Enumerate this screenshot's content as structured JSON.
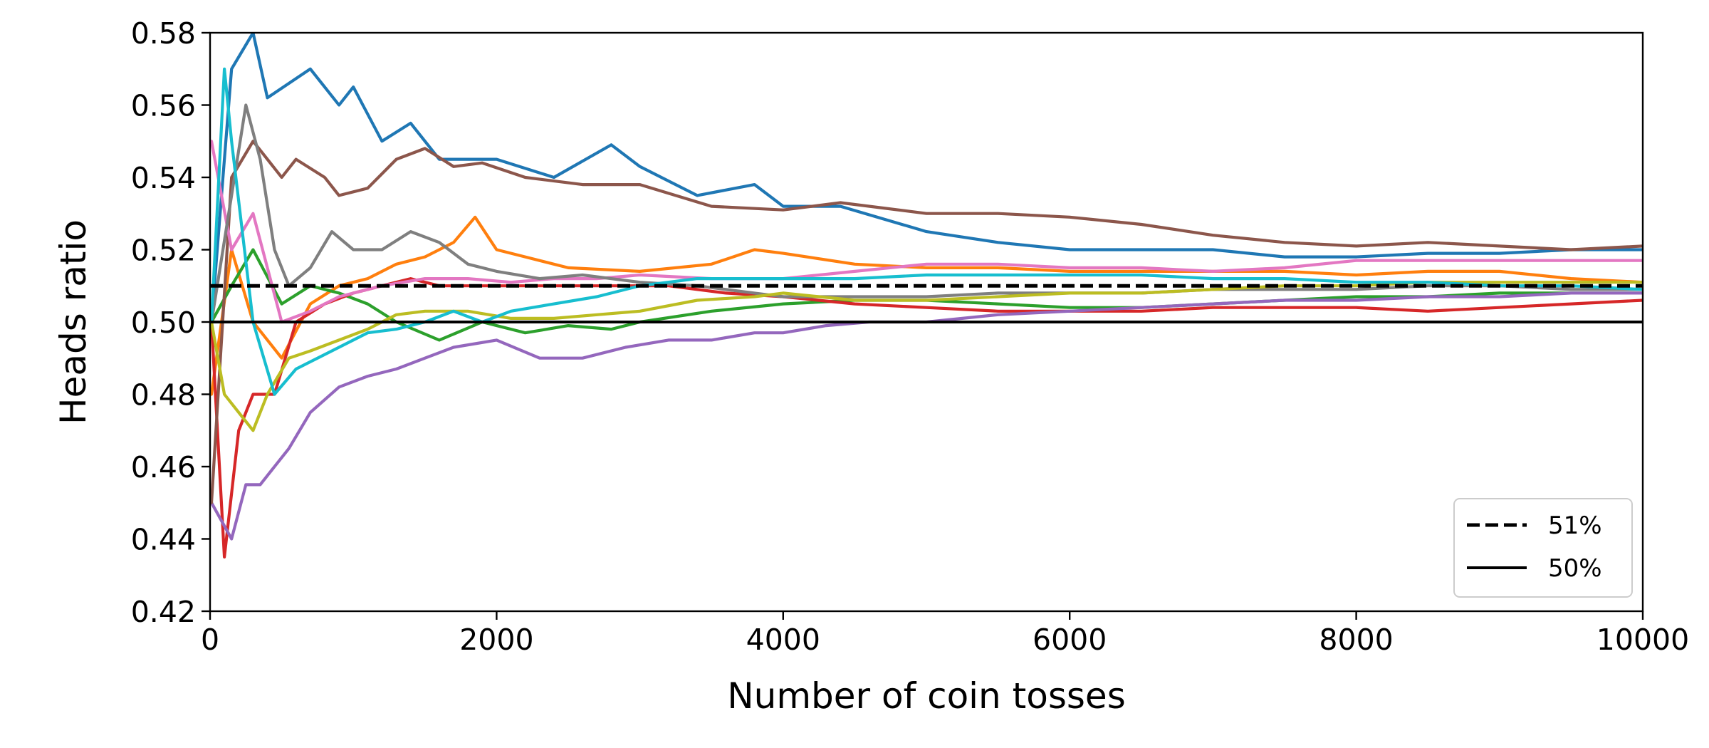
{
  "chart_data": {
    "type": "line",
    "title": "",
    "xlabel": "Number of coin tosses",
    "ylabel": "Heads ratio",
    "xlim": [
      0,
      10000
    ],
    "ylim": [
      0.42,
      0.58
    ],
    "x_ticks": [
      0,
      2000,
      4000,
      6000,
      8000,
      10000
    ],
    "x_tick_labels": [
      "0",
      "2000",
      "4000",
      "6000",
      "8000",
      "10000"
    ],
    "y_ticks": [
      0.42,
      0.44,
      0.46,
      0.48,
      0.5,
      0.52,
      0.54,
      0.56,
      0.58
    ],
    "y_tick_labels": [
      "0.42",
      "0.44",
      "0.46",
      "0.48",
      "0.50",
      "0.52",
      "0.54",
      "0.56",
      "0.58"
    ],
    "grid": false,
    "legend": {
      "placement": "lower-right",
      "entries": [
        {
          "label": "51%",
          "style": "dashed",
          "color": "#000000"
        },
        {
          "label": "50%",
          "style": "solid",
          "color": "#000000"
        }
      ]
    },
    "reference_lines": [
      {
        "label": "51%",
        "y": 0.51,
        "style": "dashed",
        "color": "#000000"
      },
      {
        "label": "50%",
        "y": 0.5,
        "style": "solid",
        "color": "#000000"
      }
    ],
    "series": [
      {
        "color": "#1f77b4",
        "x": [
          10,
          150,
          300,
          400,
          700,
          900,
          1000,
          1200,
          1400,
          1600,
          1800,
          2000,
          2400,
          2800,
          3000,
          3400,
          3800,
          4000,
          4400,
          5000,
          5500,
          6000,
          6500,
          7000,
          7500,
          8000,
          8500,
          9000,
          9500,
          10000
        ],
        "y": [
          0.5,
          0.57,
          0.58,
          0.562,
          0.57,
          0.56,
          0.565,
          0.55,
          0.555,
          0.545,
          0.545,
          0.545,
          0.54,
          0.549,
          0.543,
          0.535,
          0.538,
          0.532,
          0.532,
          0.525,
          0.522,
          0.52,
          0.52,
          0.52,
          0.518,
          0.518,
          0.519,
          0.519,
          0.52,
          0.52
        ]
      },
      {
        "color": "#ff7f0e",
        "x": [
          10,
          150,
          300,
          500,
          700,
          900,
          1100,
          1300,
          1500,
          1700,
          1850,
          2000,
          2200,
          2500,
          3000,
          3500,
          3800,
          4000,
          4500,
          5000,
          5500,
          6000,
          6500,
          7000,
          7500,
          8000,
          8500,
          9000,
          9500,
          10000
        ],
        "y": [
          0.48,
          0.52,
          0.5,
          0.49,
          0.505,
          0.51,
          0.512,
          0.516,
          0.518,
          0.522,
          0.529,
          0.52,
          0.518,
          0.515,
          0.514,
          0.516,
          0.52,
          0.519,
          0.516,
          0.515,
          0.515,
          0.514,
          0.514,
          0.514,
          0.514,
          0.513,
          0.514,
          0.514,
          0.512,
          0.511
        ]
      },
      {
        "color": "#2ca02c",
        "x": [
          10,
          150,
          300,
          500,
          700,
          900,
          1100,
          1300,
          1600,
          1900,
          2200,
          2500,
          2800,
          3000,
          3500,
          4000,
          4500,
          5000,
          5500,
          6000,
          6500,
          7000,
          7500,
          8000,
          8500,
          9000,
          9500,
          10000
        ],
        "y": [
          0.5,
          0.51,
          0.52,
          0.505,
          0.51,
          0.508,
          0.505,
          0.5,
          0.495,
          0.5,
          0.497,
          0.499,
          0.498,
          0.5,
          0.503,
          0.505,
          0.506,
          0.506,
          0.505,
          0.504,
          0.504,
          0.505,
          0.506,
          0.507,
          0.507,
          0.508,
          0.508,
          0.508
        ]
      },
      {
        "color": "#d62728",
        "x": [
          10,
          100,
          200,
          300,
          450,
          600,
          800,
          1000,
          1200,
          1400,
          1600,
          2000,
          2400,
          2800,
          3200,
          3600,
          4000,
          4500,
          5000,
          5500,
          6000,
          6500,
          7000,
          7500,
          8000,
          8500,
          9000,
          9500,
          10000
        ],
        "y": [
          0.5,
          0.435,
          0.47,
          0.48,
          0.48,
          0.5,
          0.505,
          0.508,
          0.51,
          0.512,
          0.51,
          0.51,
          0.51,
          0.51,
          0.51,
          0.508,
          0.507,
          0.505,
          0.504,
          0.503,
          0.503,
          0.503,
          0.504,
          0.504,
          0.504,
          0.503,
          0.504,
          0.505,
          0.506
        ]
      },
      {
        "color": "#9467bd",
        "x": [
          10,
          150,
          250,
          350,
          450,
          550,
          700,
          900,
          1100,
          1300,
          1500,
          1700,
          2000,
          2300,
          2600,
          2900,
          3200,
          3500,
          3800,
          4000,
          4300,
          4600,
          5000,
          5500,
          6000,
          6500,
          7000,
          7500,
          8000,
          8500,
          9000,
          9500,
          10000
        ],
        "y": [
          0.45,
          0.44,
          0.455,
          0.455,
          0.46,
          0.465,
          0.475,
          0.482,
          0.485,
          0.487,
          0.49,
          0.493,
          0.495,
          0.49,
          0.49,
          0.493,
          0.495,
          0.495,
          0.497,
          0.497,
          0.499,
          0.5,
          0.5,
          0.502,
          0.503,
          0.504,
          0.505,
          0.506,
          0.506,
          0.507,
          0.507,
          0.508,
          0.508
        ]
      },
      {
        "color": "#8c564b",
        "x": [
          10,
          150,
          300,
          400,
          500,
          600,
          800,
          900,
          1100,
          1300,
          1500,
          1700,
          1900,
          2200,
          2600,
          3000,
          3500,
          4000,
          4400,
          5000,
          5500,
          6000,
          6500,
          7000,
          7500,
          8000,
          8500,
          9000,
          9500,
          10000
        ],
        "y": [
          0.45,
          0.54,
          0.55,
          0.545,
          0.54,
          0.545,
          0.54,
          0.535,
          0.537,
          0.545,
          0.548,
          0.543,
          0.544,
          0.54,
          0.538,
          0.538,
          0.532,
          0.531,
          0.533,
          0.53,
          0.53,
          0.529,
          0.527,
          0.524,
          0.522,
          0.521,
          0.522,
          0.521,
          0.52,
          0.521
        ]
      },
      {
        "color": "#e377c2",
        "x": [
          10,
          150,
          300,
          500,
          700,
          900,
          1200,
          1500,
          1800,
          2100,
          2400,
          2700,
          3000,
          3500,
          4000,
          4500,
          5000,
          5500,
          6000,
          6500,
          7000,
          7500,
          8000,
          8500,
          9000,
          9500,
          10000
        ],
        "y": [
          0.55,
          0.52,
          0.53,
          0.5,
          0.503,
          0.507,
          0.51,
          0.512,
          0.512,
          0.511,
          0.512,
          0.512,
          0.513,
          0.512,
          0.512,
          0.514,
          0.516,
          0.516,
          0.515,
          0.515,
          0.514,
          0.515,
          0.517,
          0.517,
          0.517,
          0.517,
          0.517
        ]
      },
      {
        "color": "#7f7f7f",
        "x": [
          10,
          150,
          250,
          350,
          450,
          550,
          700,
          850,
          1000,
          1200,
          1400,
          1600,
          1800,
          2000,
          2300,
          2600,
          3000,
          3400,
          3800,
          4000,
          4500,
          5000,
          5500,
          6000,
          6500,
          7000,
          7500,
          8000,
          8500,
          9000,
          9500,
          10000
        ],
        "y": [
          0.5,
          0.535,
          0.56,
          0.545,
          0.52,
          0.51,
          0.515,
          0.525,
          0.52,
          0.52,
          0.525,
          0.522,
          0.516,
          0.514,
          0.512,
          0.513,
          0.511,
          0.51,
          0.508,
          0.507,
          0.507,
          0.507,
          0.508,
          0.508,
          0.508,
          0.509,
          0.509,
          0.509,
          0.51,
          0.51,
          0.509,
          0.509
        ]
      },
      {
        "color": "#bcbd22",
        "x": [
          10,
          100,
          200,
          300,
          400,
          550,
          700,
          900,
          1100,
          1300,
          1500,
          1800,
          2100,
          2400,
          2700,
          3000,
          3400,
          3800,
          4000,
          4500,
          5000,
          5500,
          6000,
          6500,
          7000,
          7500,
          8000,
          8500,
          9000,
          9500,
          10000
        ],
        "y": [
          0.5,
          0.48,
          0.475,
          0.47,
          0.48,
          0.49,
          0.492,
          0.495,
          0.498,
          0.502,
          0.503,
          0.503,
          0.501,
          0.501,
          0.502,
          0.503,
          0.506,
          0.507,
          0.508,
          0.506,
          0.506,
          0.507,
          0.508,
          0.508,
          0.509,
          0.51,
          0.51,
          0.511,
          0.511,
          0.511,
          0.511
        ]
      },
      {
        "color": "#17becf",
        "x": [
          10,
          100,
          150,
          300,
          450,
          600,
          750,
          900,
          1100,
          1300,
          1500,
          1700,
          1900,
          2100,
          2400,
          2700,
          3000,
          3400,
          3800,
          4000,
          4500,
          5000,
          5500,
          6000,
          6500,
          7000,
          7500,
          8000,
          8500,
          9000,
          9500,
          10000
        ],
        "y": [
          0.5,
          0.57,
          0.55,
          0.5,
          0.48,
          0.487,
          0.49,
          0.493,
          0.497,
          0.498,
          0.5,
          0.503,
          0.5,
          0.503,
          0.505,
          0.507,
          0.51,
          0.512,
          0.512,
          0.512,
          0.512,
          0.513,
          0.513,
          0.513,
          0.513,
          0.512,
          0.512,
          0.511,
          0.511,
          0.51,
          0.51,
          0.509
        ]
      }
    ]
  }
}
